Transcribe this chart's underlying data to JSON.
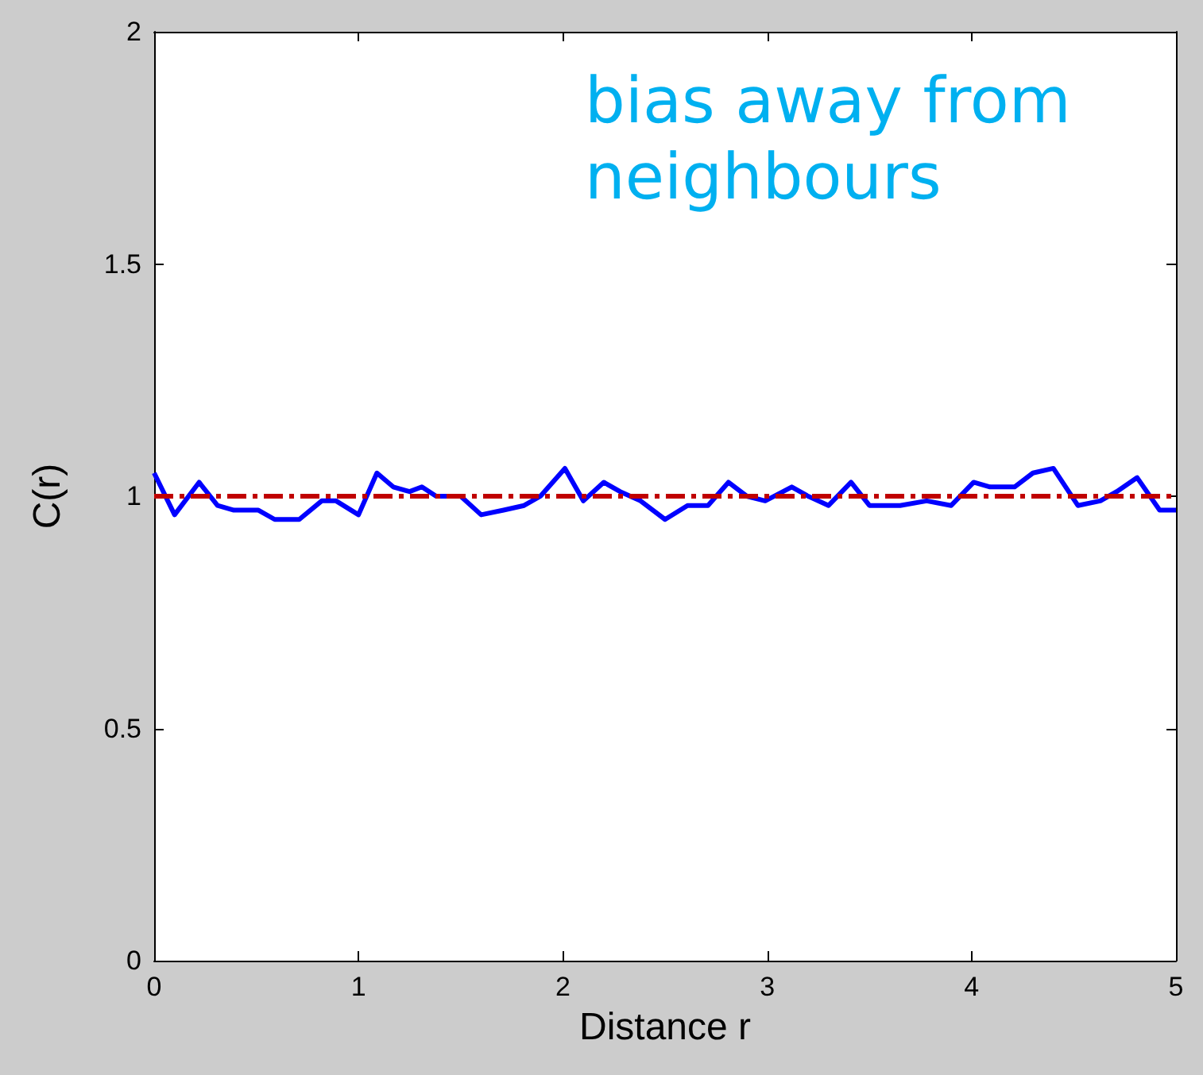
{
  "chart_data": {
    "type": "line",
    "xlabel": "Distance r",
    "ylabel": "C(r)",
    "annotations": [
      "bias away from\nneighbours"
    ],
    "x": [
      0,
      0.1,
      0.22,
      0.31,
      0.39,
      0.51,
      0.59,
      0.71,
      0.82,
      0.89,
      1.0,
      1.09,
      1.17,
      1.25,
      1.31,
      1.38,
      1.5,
      1.6,
      1.71,
      1.81,
      1.89,
      2.01,
      2.1,
      2.2,
      2.28,
      2.38,
      2.5,
      2.61,
      2.71,
      2.81,
      2.9,
      2.99,
      3.12,
      3.2,
      3.3,
      3.41,
      3.5,
      3.65,
      3.78,
      3.9,
      4.01,
      4.09,
      4.21,
      4.3,
      4.4,
      4.52,
      4.63,
      4.71,
      4.81,
      4.92,
      5.0
    ],
    "series": [
      {
        "color": "#0000ff",
        "values": [
          1.05,
          0.96,
          1.03,
          0.98,
          0.97,
          0.97,
          0.95,
          0.95,
          0.99,
          0.99,
          0.96,
          1.05,
          1.02,
          1.01,
          1.02,
          1.0,
          1.0,
          0.96,
          0.97,
          0.98,
          1.0,
          1.06,
          0.99,
          1.03,
          1.01,
          0.99,
          0.95,
          0.98,
          0.98,
          1.03,
          1.0,
          0.99,
          1.02,
          1.0,
          0.98,
          1.03,
          0.98,
          0.98,
          0.99,
          0.98,
          1.03,
          1.02,
          1.02,
          1.05,
          1.06,
          0.98,
          0.99,
          1.01,
          1.04,
          0.97,
          0.97
        ]
      }
    ],
    "ref_lines": [
      {
        "axis": "y",
        "value": 1,
        "color": "#c00000",
        "line_style": "dashdot"
      }
    ],
    "xlim": [
      0,
      5
    ],
    "xticks": [
      0,
      1,
      2,
      3,
      4,
      5
    ],
    "ylim": [
      0,
      2
    ],
    "yticks": [
      0,
      0.5,
      1,
      1.5,
      2
    ],
    "grid": false,
    "marker": "none",
    "line_style": "solid"
  }
}
